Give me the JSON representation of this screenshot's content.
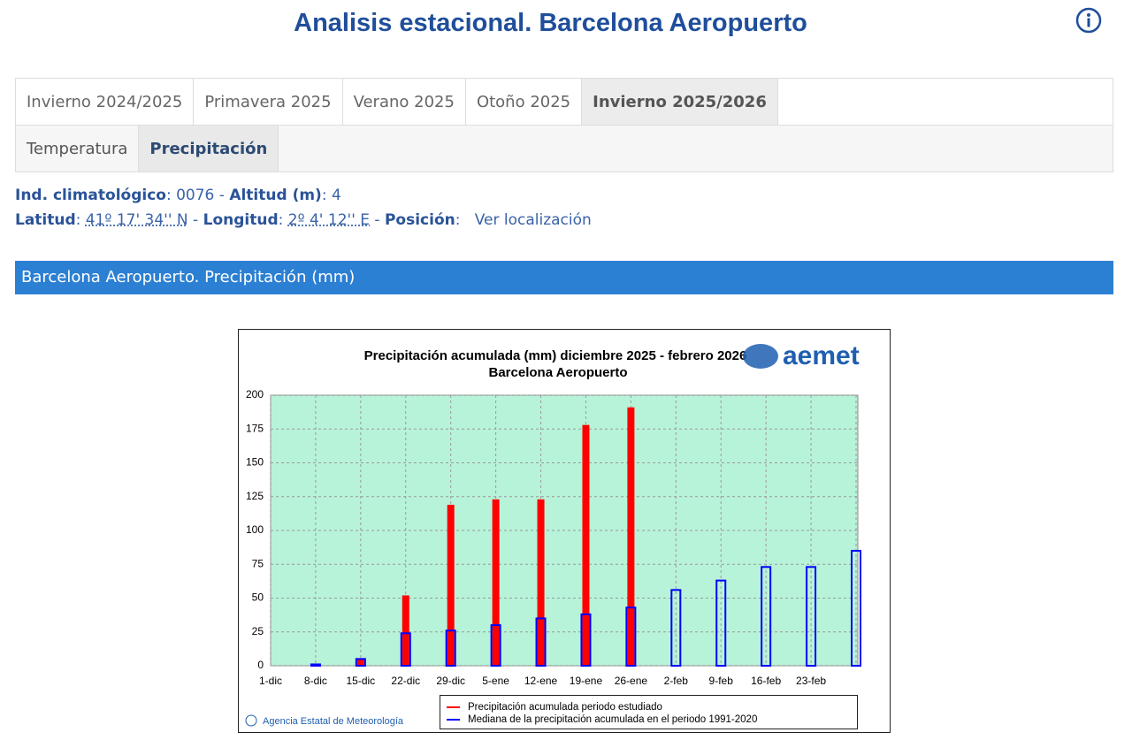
{
  "header": {
    "title": "Analisis estacional. Barcelona Aeropuerto"
  },
  "tabs": {
    "items": [
      "Invierno 2024/2025",
      "Primavera 2025",
      "Verano 2025",
      "Otoño 2025",
      "Invierno 2025/2026"
    ],
    "active": 4
  },
  "subtabs": {
    "items": [
      "Temperatura",
      "Precipitación"
    ],
    "active": 1
  },
  "station": {
    "lines": [
      [
        {
          "text": "Ind. climatológico",
          "bold": true
        },
        {
          "text": ": 0076 - "
        },
        {
          "text": "Altitud (m)",
          "bold": true
        },
        {
          "text": ": 4"
        }
      ],
      [
        {
          "text": "Latitud",
          "bold": true
        },
        {
          "text": ": "
        },
        {
          "text": "41º 17' 34'' N",
          "abbr": true
        },
        {
          "text": " - "
        },
        {
          "text": "Longitud",
          "bold": true
        },
        {
          "text": ": "
        },
        {
          "text": "2º 4' 12'' E",
          "abbr": true
        },
        {
          "text": " - "
        },
        {
          "text": "Posición",
          "bold": true
        },
        {
          "text": ":   "
        },
        {
          "text": "Ver localización",
          "link": true
        }
      ]
    ]
  },
  "section": {
    "title": "Barcelona Aeropuerto. Precipitación (mm)"
  },
  "chart_data": {
    "type": "bar",
    "title": "Precipitación acumulada (mm) diciembre 2025 - febrero 2026",
    "subtitle": "Barcelona Aeropuerto",
    "logo": "aemet",
    "credit": "Agencia Estatal de Meteorología",
    "categories": [
      "1-dic",
      "8-dic",
      "15-dic",
      "22-dic",
      "29-dic",
      "5-ene",
      "12-ene",
      "19-ene",
      "26-ene",
      "2-feb",
      "9-feb",
      "16-feb",
      "23-feb",
      null
    ],
    "series": [
      {
        "name": "Precipitación acumulada periodo estudiado",
        "color": "#ff0000",
        "values": [
          null,
          1,
          5,
          52,
          119,
          123,
          123,
          178,
          191,
          null,
          null,
          null,
          null,
          null
        ]
      },
      {
        "name": "Mediana de la precipitación acumulada en el periodo 1991-2020",
        "color": "#0000ff",
        "values": [
          null,
          1,
          5,
          24,
          26,
          30,
          35,
          38,
          43,
          56,
          63,
          73,
          73,
          85
        ]
      }
    ],
    "ylim": [
      0,
      200
    ],
    "yticks": [
      0,
      25,
      50,
      75,
      100,
      125,
      150,
      175,
      200
    ],
    "grid": true
  }
}
